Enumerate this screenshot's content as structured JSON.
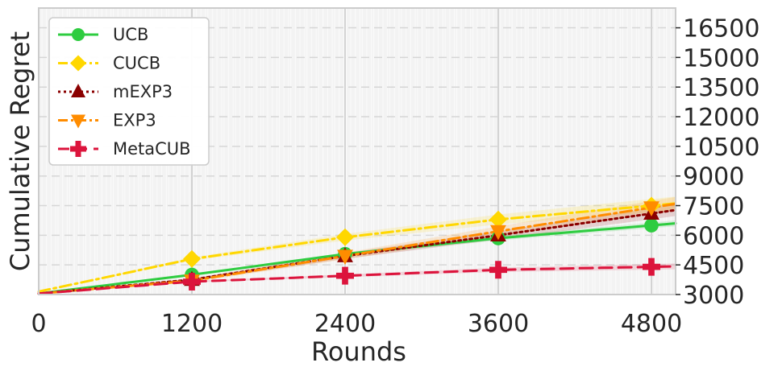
{
  "chart_data": {
    "type": "line",
    "xlabel": "Rounds",
    "ylabel": "Cumulative Regret",
    "xlim": [
      0,
      4800
    ],
    "ylim": [
      3000,
      17500
    ],
    "xticks": [
      0,
      1200,
      2400,
      3600,
      4800
    ],
    "xtick_labels": [
      "0",
      "1200",
      "2400",
      "3600",
      "4800"
    ],
    "yticks": [
      3000,
      4500,
      6000,
      7500,
      9000,
      10500,
      12000,
      13500,
      15000,
      16500
    ],
    "ytick_labels": [
      "3000",
      "4500",
      "6000",
      "7500",
      "9000",
      "10500",
      "12000",
      "13500",
      "15000",
      "16500"
    ],
    "y_axis_side": "right",
    "grid": true,
    "legend_position": "top-left",
    "x": [
      0,
      1200,
      2400,
      3600,
      4800
    ],
    "series": [
      {
        "name": "UCB",
        "color": "#2ecc40",
        "line_style": "solid",
        "marker": "circle",
        "values": [
          3050,
          4000,
          5050,
          5850,
          6500
        ],
        "band": 150
      },
      {
        "name": "CUCB",
        "color": "#ffd700",
        "line_style": "dashdot",
        "marker": "diamond",
        "values": [
          3150,
          4800,
          5900,
          6800,
          7500
        ],
        "band": 350
      },
      {
        "name": "mEXP3",
        "color": "#8b0000",
        "line_style": "dotted",
        "marker": "triangle-up",
        "values": [
          3050,
          3750,
          4950,
          6000,
          7100
        ],
        "band": 300
      },
      {
        "name": "EXP3",
        "color": "#ff8c00",
        "line_style": "dashdot",
        "marker": "triangle-down",
        "values": [
          3050,
          3700,
          4950,
          6200,
          7400
        ],
        "band": 350
      },
      {
        "name": "MetaCUB",
        "color": "#dc143c",
        "line_style": "dashed",
        "marker": "plus",
        "values": [
          3050,
          3650,
          3950,
          4250,
          4400
        ],
        "band": 150
      }
    ]
  }
}
